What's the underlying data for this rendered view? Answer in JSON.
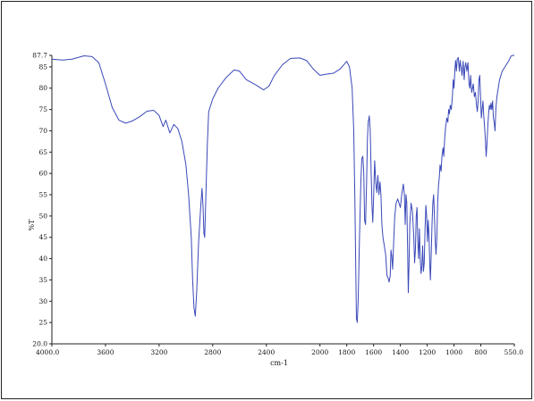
{
  "chart_data": {
    "type": "line",
    "xlabel": "cm-1",
    "ylabel": "%T",
    "x_reversed": true,
    "xlim": [
      4000.0,
      550.0
    ],
    "ylim": [
      20.0,
      87.7
    ],
    "x_ticks": [
      4000.0,
      3600,
      3200,
      2800,
      2400,
      2000,
      1800,
      1600,
      1400,
      1200,
      1000,
      800,
      550.0
    ],
    "x_tick_labels": [
      "4000.0",
      "3600",
      "3200",
      "2800",
      "2400",
      "2000",
      "1800",
      "1600",
      "1400",
      "1200",
      "1000",
      "800",
      "550.0"
    ],
    "y_ticks": [
      20.0,
      25,
      30,
      35,
      40,
      45,
      50,
      55,
      60,
      65,
      70,
      75,
      80,
      85,
      87.7
    ],
    "y_tick_labels": [
      "20.0",
      "25",
      "30",
      "35",
      "40",
      "45",
      "50",
      "55",
      "60",
      "65",
      "70",
      "75",
      "80",
      "85",
      "87.7"
    ],
    "grid": false,
    "line_color": "#3a48b8",
    "series": [
      {
        "points": [
          [
            4000,
            86.8
          ],
          [
            3920,
            86.6
          ],
          [
            3850,
            86.8
          ],
          [
            3760,
            87.6
          ],
          [
            3700,
            87.4
          ],
          [
            3650,
            86.0
          ],
          [
            3600,
            81.0
          ],
          [
            3550,
            75.5
          ],
          [
            3500,
            72.5
          ],
          [
            3450,
            71.8
          ],
          [
            3400,
            72.3
          ],
          [
            3350,
            73.2
          ],
          [
            3290,
            74.6
          ],
          [
            3240,
            74.8
          ],
          [
            3200,
            73.6
          ],
          [
            3170,
            71.0
          ],
          [
            3150,
            72.5
          ],
          [
            3120,
            69.5
          ],
          [
            3090,
            71.5
          ],
          [
            3060,
            70.5
          ],
          [
            3030,
            67.5
          ],
          [
            3000,
            62.0
          ],
          [
            2980,
            55.0
          ],
          [
            2960,
            45.0
          ],
          [
            2950,
            35.0
          ],
          [
            2940,
            28.5
          ],
          [
            2930,
            26.5
          ],
          [
            2920,
            32.0
          ],
          [
            2905,
            44.0
          ],
          [
            2890,
            52.0
          ],
          [
            2880,
            56.5
          ],
          [
            2872,
            52.0
          ],
          [
            2866,
            46.0
          ],
          [
            2860,
            45.0
          ],
          [
            2850,
            56.0
          ],
          [
            2840,
            67.0
          ],
          [
            2830,
            74.5
          ],
          [
            2800,
            77.5
          ],
          [
            2760,
            80.0
          ],
          [
            2700,
            82.5
          ],
          [
            2640,
            84.3
          ],
          [
            2600,
            84.0
          ],
          [
            2550,
            82.0
          ],
          [
            2480,
            80.8
          ],
          [
            2420,
            79.6
          ],
          [
            2380,
            80.5
          ],
          [
            2340,
            83.0
          ],
          [
            2280,
            85.5
          ],
          [
            2220,
            87.0
          ],
          [
            2150,
            87.1
          ],
          [
            2100,
            86.5
          ],
          [
            2050,
            84.5
          ],
          [
            2000,
            83.0
          ],
          [
            1950,
            83.3
          ],
          [
            1900,
            83.5
          ],
          [
            1850,
            84.5
          ],
          [
            1800,
            86.3
          ],
          [
            1780,
            85.0
          ],
          [
            1760,
            80.0
          ],
          [
            1748,
            70.0
          ],
          [
            1740,
            55.0
          ],
          [
            1733,
            38.0
          ],
          [
            1728,
            26.0
          ],
          [
            1722,
            25.0
          ],
          [
            1715,
            30.0
          ],
          [
            1705,
            45.0
          ],
          [
            1695,
            58.0
          ],
          [
            1688,
            63.5
          ],
          [
            1680,
            64.0
          ],
          [
            1673,
            60.0
          ],
          [
            1667,
            49.0
          ],
          [
            1660,
            48.0
          ],
          [
            1652,
            58.0
          ],
          [
            1646,
            68.0
          ],
          [
            1640,
            72.0
          ],
          [
            1632,
            73.5
          ],
          [
            1625,
            70.0
          ],
          [
            1618,
            60.0
          ],
          [
            1612,
            52.5
          ],
          [
            1606,
            48.5
          ],
          [
            1600,
            54.0
          ],
          [
            1592,
            63.0
          ],
          [
            1584,
            58.0
          ],
          [
            1576,
            55.5
          ],
          [
            1568,
            59.5
          ],
          [
            1560,
            55.0
          ],
          [
            1552,
            58.0
          ],
          [
            1545,
            55.0
          ],
          [
            1538,
            48.0
          ],
          [
            1530,
            45.0
          ],
          [
            1520,
            43.0
          ],
          [
            1510,
            41.0
          ],
          [
            1500,
            36.0
          ],
          [
            1492,
            35.5
          ],
          [
            1484,
            34.5
          ],
          [
            1476,
            36.0
          ],
          [
            1470,
            42.0
          ],
          [
            1464,
            40.5
          ],
          [
            1458,
            37.5
          ],
          [
            1450,
            44.0
          ],
          [
            1442,
            50.0
          ],
          [
            1432,
            53.0
          ],
          [
            1420,
            54.0
          ],
          [
            1410,
            53.0
          ],
          [
            1400,
            52.0
          ],
          [
            1390,
            55.0
          ],
          [
            1378,
            57.5
          ],
          [
            1370,
            55.0
          ],
          [
            1364,
            48.0
          ],
          [
            1358,
            55.0
          ],
          [
            1352,
            53.0
          ],
          [
            1346,
            42.0
          ],
          [
            1341,
            32.0
          ],
          [
            1336,
            38.0
          ],
          [
            1330,
            48.0
          ],
          [
            1320,
            53.0
          ],
          [
            1310,
            51.0
          ],
          [
            1300,
            45.0
          ],
          [
            1294,
            39.0
          ],
          [
            1288,
            42.0
          ],
          [
            1282,
            50.0
          ],
          [
            1276,
            52.0
          ],
          [
            1270,
            44.0
          ],
          [
            1264,
            40.0
          ],
          [
            1258,
            47.0
          ],
          [
            1252,
            40.0
          ],
          [
            1246,
            36.5
          ],
          [
            1240,
            38.0
          ],
          [
            1234,
            43.0
          ],
          [
            1228,
            37.0
          ],
          [
            1222,
            39.0
          ],
          [
            1216,
            47.0
          ],
          [
            1210,
            52.5
          ],
          [
            1204,
            50.0
          ],
          [
            1198,
            44.0
          ],
          [
            1192,
            49.0
          ],
          [
            1186,
            45.0
          ],
          [
            1180,
            38.0
          ],
          [
            1176,
            35.0
          ],
          [
            1170,
            41.0
          ],
          [
            1164,
            48.0
          ],
          [
            1158,
            53.0
          ],
          [
            1152,
            55.0
          ],
          [
            1146,
            50.0
          ],
          [
            1140,
            44.0
          ],
          [
            1134,
            41.0
          ],
          [
            1128,
            45.0
          ],
          [
            1122,
            53.0
          ],
          [
            1116,
            57.0
          ],
          [
            1110,
            59.0
          ],
          [
            1104,
            62.0
          ],
          [
            1096,
            60.5
          ],
          [
            1090,
            64.0
          ],
          [
            1082,
            66.0
          ],
          [
            1076,
            64.0
          ],
          [
            1070,
            68.0
          ],
          [
            1062,
            71.0
          ],
          [
            1054,
            73.0
          ],
          [
            1046,
            72.0
          ],
          [
            1040,
            75.0
          ],
          [
            1034,
            74.0
          ],
          [
            1028,
            76.0
          ],
          [
            1020,
            75.0
          ],
          [
            1012,
            78.0
          ],
          [
            1006,
            82.0
          ],
          [
            1000,
            80.0
          ],
          [
            994,
            84.0
          ],
          [
            988,
            86.5
          ],
          [
            982,
            84.0
          ],
          [
            976,
            86.8
          ],
          [
            968,
            87.2
          ],
          [
            960,
            84.0
          ],
          [
            954,
            86.5
          ],
          [
            946,
            84.5
          ],
          [
            940,
            83.0
          ],
          [
            932,
            86.3
          ],
          [
            924,
            82.0
          ],
          [
            918,
            85.0
          ],
          [
            912,
            86.0
          ],
          [
            904,
            84.0
          ],
          [
            896,
            86.0
          ],
          [
            888,
            81.0
          ],
          [
            882,
            80.0
          ],
          [
            876,
            83.0
          ],
          [
            868,
            79.0
          ],
          [
            862,
            80.0
          ],
          [
            856,
            81.0
          ],
          [
            848,
            78.0
          ],
          [
            840,
            79.0
          ],
          [
            832,
            76.0
          ],
          [
            826,
            74.5
          ],
          [
            820,
            77.0
          ],
          [
            814,
            82.0
          ],
          [
            808,
            83.0
          ],
          [
            802,
            78.0
          ],
          [
            796,
            73.0
          ],
          [
            790,
            75.0
          ],
          [
            784,
            77.0
          ],
          [
            778,
            73.5
          ],
          [
            772,
            71.0
          ],
          [
            766,
            68.0
          ],
          [
            760,
            64.0
          ],
          [
            754,
            67.0
          ],
          [
            748,
            71.0
          ],
          [
            742,
            74.0
          ],
          [
            736,
            76.0
          ],
          [
            730,
            75.0
          ],
          [
            724,
            76.5
          ],
          [
            718,
            75.0
          ],
          [
            712,
            77.0
          ],
          [
            706,
            73.0
          ],
          [
            700,
            72.0
          ],
          [
            694,
            70.0
          ],
          [
            688,
            75.0
          ],
          [
            680,
            78.0
          ],
          [
            670,
            80.0
          ],
          [
            660,
            82.0
          ],
          [
            650,
            83.0
          ],
          [
            640,
            84.0
          ],
          [
            630,
            84.5
          ],
          [
            620,
            85.0
          ],
          [
            610,
            85.5
          ],
          [
            600,
            86.0
          ],
          [
            590,
            86.5
          ],
          [
            575,
            87.5
          ],
          [
            560,
            87.7
          ],
          [
            550,
            87.7
          ]
        ]
      }
    ]
  }
}
